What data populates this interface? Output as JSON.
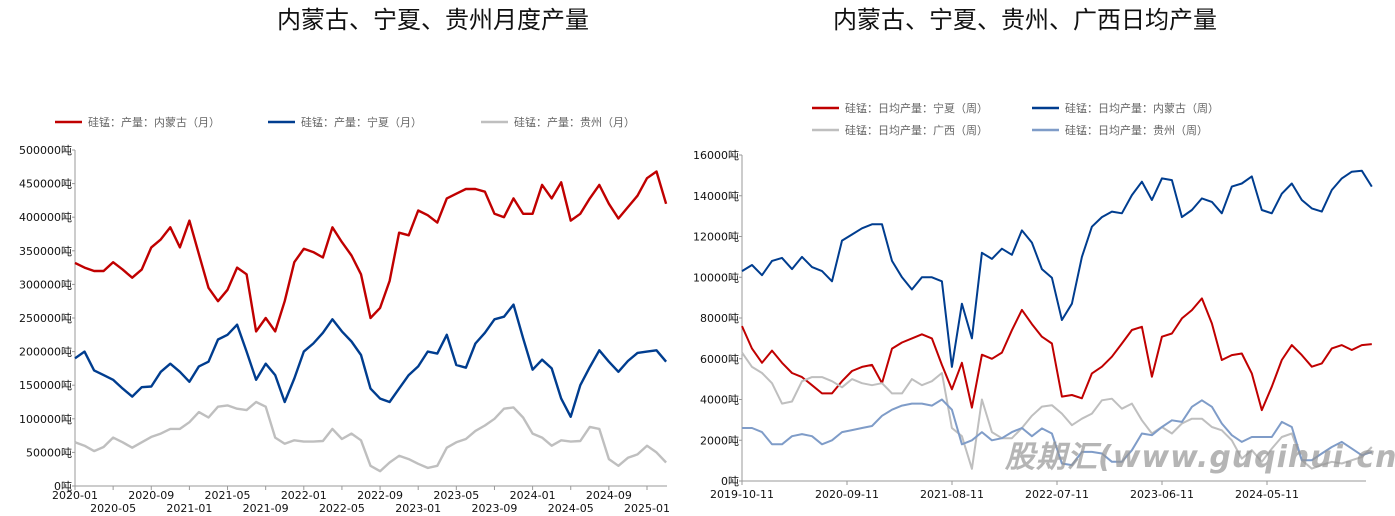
{
  "chart_data": [
    {
      "type": "line",
      "title": "内蒙古、宁夏、贵州月度产量",
      "xlabel": "",
      "ylabel": "",
      "unit_suffix": "吨",
      "ylim": [
        0,
        500000
      ],
      "yticks": [
        "0吨",
        "50000吨",
        "100000吨",
        "150000吨",
        "200000吨",
        "250000吨",
        "300000吨",
        "350000吨",
        "400000吨",
        "450000吨",
        "500000吨"
      ],
      "ytick_values": [
        0,
        50000,
        100000,
        150000,
        200000,
        250000,
        300000,
        350000,
        400000,
        450000,
        500000
      ],
      "xticks": [
        "2020-01",
        "2020-05",
        "2020-09",
        "2021-01",
        "2021-05",
        "2021-09",
        "2022-01",
        "2022-05",
        "2022-09",
        "2023-01",
        "2023-05",
        "2023-09",
        "2024-01",
        "2024-05",
        "2024-09",
        "2025-01"
      ],
      "x_start": "2020-01",
      "x_interval": "month",
      "legend_position": "top",
      "series": [
        {
          "name": "硅锰：产量：内蒙古（月）",
          "color": "#c00000",
          "values": [
            332000,
            325000,
            320000,
            320000,
            333000,
            322000,
            310000,
            322000,
            355000,
            367000,
            385000,
            355000,
            395000,
            345000,
            295000,
            275000,
            292000,
            325000,
            315000,
            230000,
            250000,
            230000,
            275000,
            333000,
            353000,
            348000,
            340000,
            385000,
            363000,
            343000,
            315000,
            250000,
            265000,
            305000,
            377000,
            373000,
            410000,
            403000,
            392000,
            428000,
            435000,
            442000,
            442000,
            438000,
            405000,
            400000,
            428000,
            405000,
            405000,
            448000,
            428000,
            452000,
            395000,
            405000,
            428000,
            448000,
            420000,
            398000,
            415000,
            432000,
            458000,
            468000,
            420000
          ]
        },
        {
          "name": "硅锰：产量：宁夏（月）",
          "color": "#003d8f",
          "values": [
            190000,
            200000,
            172000,
            165000,
            158000,
            145000,
            133000,
            147000,
            148000,
            170000,
            182000,
            170000,
            155000,
            178000,
            185000,
            218000,
            225000,
            240000,
            200000,
            158000,
            182000,
            165000,
            125000,
            160000,
            200000,
            212000,
            228000,
            248000,
            230000,
            215000,
            195000,
            145000,
            130000,
            125000,
            145000,
            165000,
            178000,
            200000,
            197000,
            225000,
            180000,
            176000,
            212000,
            228000,
            248000,
            252000,
            270000,
            220000,
            173000,
            188000,
            175000,
            130000,
            103000,
            150000,
            177000,
            202000,
            185000,
            170000,
            186000,
            198000,
            200000,
            202000,
            185000
          ]
        },
        {
          "name": "硅锰：产量：贵州（月）",
          "color": "#bfbfbf",
          "values": [
            65000,
            60000,
            52000,
            58000,
            72000,
            65000,
            57000,
            65000,
            73000,
            78000,
            85000,
            85000,
            95000,
            110000,
            102000,
            118000,
            120000,
            115000,
            113000,
            125000,
            118000,
            72000,
            63000,
            68000,
            66000,
            66000,
            67000,
            85000,
            70000,
            78000,
            68000,
            30000,
            22000,
            35000,
            45000,
            40000,
            33000,
            27000,
            30000,
            57000,
            65000,
            70000,
            82000,
            90000,
            100000,
            115000,
            117000,
            102000,
            78000,
            72000,
            60000,
            68000,
            66000,
            67000,
            88000,
            85000,
            40000,
            30000,
            42000,
            47000,
            60000,
            50000,
            35000
          ]
        }
      ]
    },
    {
      "type": "line",
      "title": "内蒙古、宁夏、贵州、广西日均产量",
      "xlabel": "",
      "ylabel": "",
      "unit_suffix": "吨",
      "ylim": [
        0,
        16000
      ],
      "yticks": [
        "0吨",
        "2000吨",
        "4000吨",
        "6000吨",
        "8000吨",
        "10000吨",
        "12000吨",
        "14000吨",
        "16000吨"
      ],
      "ytick_values": [
        0,
        2000,
        4000,
        6000,
        8000,
        10000,
        12000,
        14000,
        16000
      ],
      "xticks": [
        "2019-10-11",
        "2020-09-11",
        "2021-08-11",
        "2022-07-11",
        "2023-06-11",
        "2024-05-11"
      ],
      "xtick_weeks": [
        0,
        48,
        96,
        144,
        192,
        240
      ],
      "sample_interval_weeks": 4.57,
      "xlim_weeks": [
        0,
        285
      ],
      "legend_position": "top",
      "series": [
        {
          "name": "硅锰：日均产量：宁夏（周）",
          "color": "#c00000",
          "values": [
            7600,
            6500,
            5800,
            6400,
            5800,
            5300,
            5100,
            4700,
            4300,
            4300,
            4900,
            5400,
            5600,
            5700,
            4800,
            6500,
            6800,
            7000,
            7200,
            7000,
            5700,
            4500,
            5800,
            3600,
            6200,
            6000,
            6300,
            7400,
            8400,
            7700,
            7080,
            6750,
            4140,
            4220,
            4060,
            5280,
            5610,
            6100,
            6750,
            7410,
            7570,
            5120,
            7080,
            7240,
            7980,
            8390,
            8960,
            7730,
            5940,
            6180,
            6260,
            5280,
            3480,
            4630,
            5940,
            6670,
            6180,
            5610,
            5770,
            6510,
            6670,
            6430,
            6670,
            6720
          ]
        },
        {
          "name": "硅锰：日均产量：内蒙古（周）",
          "color": "#003d8f",
          "values": [
            10300,
            10600,
            10100,
            10800,
            10950,
            10400,
            11000,
            10500,
            10300,
            9800,
            11800,
            12100,
            12400,
            12600,
            12600,
            10800,
            10000,
            9400,
            10000,
            10000,
            9800,
            5600,
            8700,
            7000,
            11200,
            10900,
            11400,
            11100,
            12300,
            11700,
            10400,
            9980,
            7900,
            8700,
            11000,
            12480,
            12950,
            13220,
            13140,
            14030,
            14690,
            13790,
            14850,
            14770,
            12950,
            13300,
            13870,
            13700,
            13140,
            14450,
            14600,
            14950,
            13300,
            13140,
            14100,
            14600,
            13790,
            13380,
            13220,
            14280,
            14850,
            15180,
            15230,
            14450
          ]
        },
        {
          "name": "硅锰：日均产量：广西（周）",
          "color": "#bfbfbf",
          "values": [
            6300,
            5600,
            5300,
            4800,
            3800,
            3900,
            4900,
            5100,
            5100,
            4900,
            4600,
            5000,
            4800,
            4700,
            4800,
            4300,
            4300,
            5000,
            4700,
            4900,
            5300,
            2600,
            2200,
            600,
            4000,
            2400,
            2100,
            2100,
            2600,
            3200,
            3650,
            3720,
            3310,
            2740,
            3060,
            3310,
            3960,
            4040,
            3550,
            3800,
            2980,
            2330,
            2650,
            2330,
            2820,
            3060,
            3060,
            2650,
            2490,
            2000,
            1100,
            1510,
            940,
            1590,
            2160,
            2330,
            1020,
            610,
            780,
            940,
            860,
            1020,
            1180,
            1670
          ]
        },
        {
          "name": "硅锰：日均产量：贵州（周）",
          "color": "#7f9cc8",
          "values": [
            2600,
            2600,
            2400,
            1800,
            1800,
            2200,
            2300,
            2200,
            1800,
            2000,
            2400,
            2500,
            2600,
            2700,
            3200,
            3500,
            3700,
            3800,
            3800,
            3700,
            4000,
            3500,
            1800,
            2000,
            2400,
            2000,
            2100,
            2400,
            2600,
            2200,
            2580,
            2330,
            860,
            780,
            1430,
            1430,
            1350,
            940,
            940,
            1510,
            2330,
            2250,
            2650,
            2980,
            2900,
            3640,
            3960,
            3640,
            2820,
            2250,
            1920,
            2160,
            2160,
            2160,
            2900,
            2650,
            1020,
            1020,
            1350,
            1670,
            1920,
            1590,
            1260,
            1430
          ]
        }
      ]
    }
  ],
  "watermark": "股期汇(www.guqihui.cn)"
}
